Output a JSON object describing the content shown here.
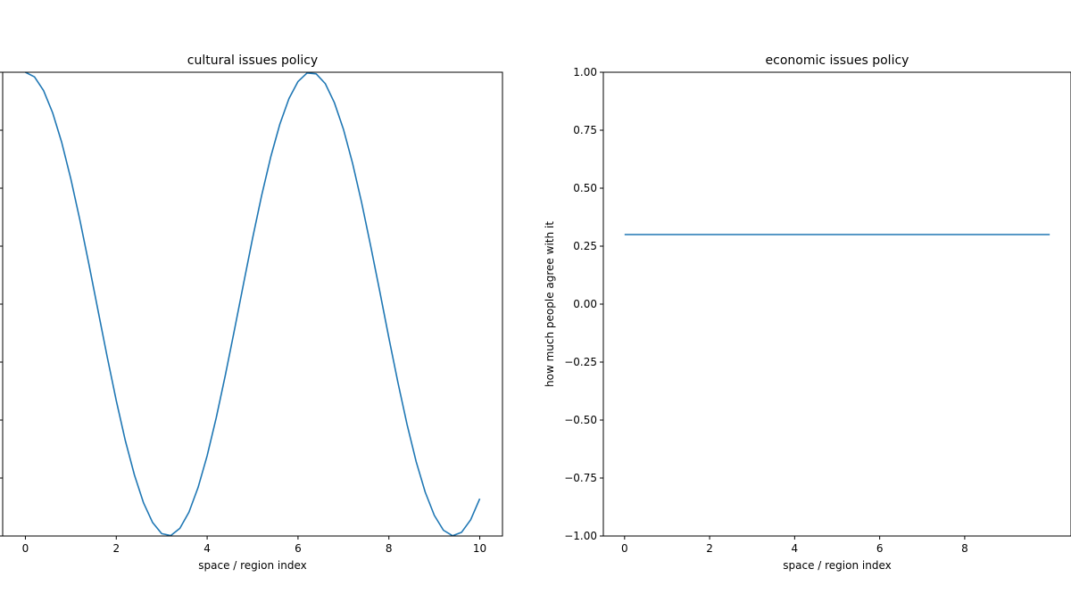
{
  "chart_data": [
    {
      "type": "line",
      "title": "cultural issues policy",
      "xlabel": "space / region index",
      "ylabel": "",
      "xlim": [
        -0.5,
        10.5
      ],
      "ylim": [
        -1.0,
        1.0
      ],
      "xticks": [
        0,
        2,
        4,
        6,
        8,
        10
      ],
      "xtick_labels": [
        "0",
        "2",
        "4",
        "6",
        "8",
        "10"
      ],
      "yticks": [
        -1.0,
        -0.75,
        -0.5,
        -0.25,
        0.0,
        0.25,
        0.5,
        0.75,
        1.0
      ],
      "ytick_labels": [
        "",
        "",
        "",
        "",
        "",
        "",
        "",
        "",
        ""
      ],
      "grid": false,
      "series": [
        {
          "color": "#1f77b4",
          "x": [
            0,
            0.2,
            0.4,
            0.6,
            0.8,
            1.0,
            1.2,
            1.4,
            1.6,
            1.8,
            2.0,
            2.2,
            2.4,
            2.6,
            2.8,
            3.0,
            3.2,
            3.4,
            3.6,
            3.8,
            4.0,
            4.2,
            4.4,
            4.6,
            4.8,
            5.0,
            5.2,
            5.4,
            5.6,
            5.8,
            6.0,
            6.2,
            6.4,
            6.6,
            6.8,
            7.0,
            7.2,
            7.4,
            7.6,
            7.8,
            8.0,
            8.2,
            8.4,
            8.6,
            8.8,
            9.0,
            9.2,
            9.4,
            9.6,
            9.8,
            10.0
          ],
          "y": [
            1.0,
            0.98,
            0.921,
            0.825,
            0.697,
            0.54,
            0.362,
            0.17,
            -0.029,
            -0.227,
            -0.416,
            -0.589,
            -0.737,
            -0.857,
            -0.942,
            -0.99,
            -0.998,
            -0.967,
            -0.897,
            -0.791,
            -0.654,
            -0.49,
            -0.307,
            -0.112,
            0.087,
            0.284,
            0.469,
            0.635,
            0.776,
            0.886,
            0.96,
            0.997,
            0.993,
            0.951,
            0.869,
            0.754,
            0.608,
            0.438,
            0.25,
            0.054,
            -0.146,
            -0.339,
            -0.519,
            -0.679,
            -0.811,
            -0.911,
            -0.975,
            -0.999,
            -0.984,
            -0.93,
            -0.839
          ]
        }
      ]
    },
    {
      "type": "line",
      "title": "economic issues policy",
      "xlabel": "space / region index",
      "ylabel": "how much people agree with it",
      "xlim": [
        -0.5,
        10.5
      ],
      "ylim": [
        -1.0,
        1.0
      ],
      "xticks": [
        0,
        2,
        4,
        6,
        8
      ],
      "xtick_labels": [
        "0",
        "2",
        "4",
        "6",
        "8"
      ],
      "yticks": [
        -1.0,
        -0.75,
        -0.5,
        -0.25,
        0.0,
        0.25,
        0.5,
        0.75,
        1.0
      ],
      "ytick_labels": [
        "−1.00",
        "−0.75",
        "−0.50",
        "−0.25",
        "0.00",
        "0.25",
        "0.50",
        "0.75",
        "1.00"
      ],
      "grid": false,
      "series": [
        {
          "color": "#1f77b4",
          "x": [
            0,
            10
          ],
          "y": [
            0.3,
            0.3
          ]
        }
      ]
    }
  ]
}
